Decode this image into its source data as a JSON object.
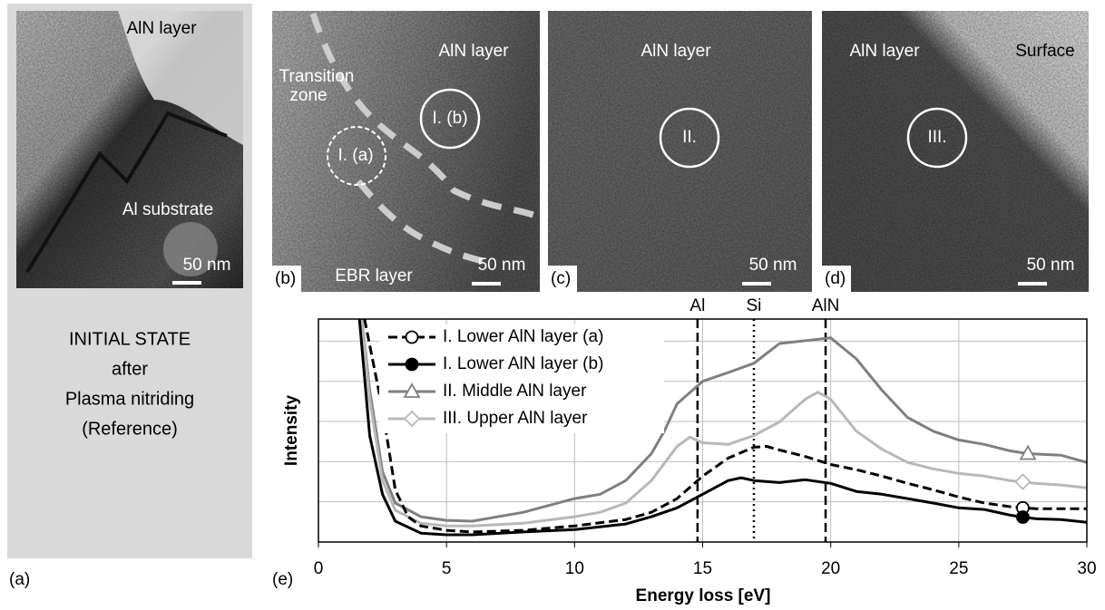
{
  "panels": [
    {
      "label": "(a)",
      "texts": [
        "AlN layer",
        "Al substrate"
      ],
      "scale_bar": "50 nm",
      "caption": [
        "INITIAL STATE",
        "after",
        "Plasma nitriding",
        "(Reference)"
      ]
    },
    {
      "label": "(b)",
      "texts": [
        "AlN layer",
        "Transition",
        "zone",
        "I. (b)",
        "I. (a)",
        "EBR layer"
      ],
      "scale_bar": "50 nm"
    },
    {
      "label": "(c)",
      "texts": [
        "AlN layer",
        "II."
      ],
      "scale_bar": "50 nm"
    },
    {
      "label": "(d)",
      "texts": [
        "AlN layer",
        "Surface",
        "III."
      ],
      "scale_bar": "50 nm"
    }
  ],
  "chart_data": {
    "type": "line",
    "panel_label": "(e)",
    "x_label": "Energy loss [eV]",
    "y_label": "Intensity",
    "xlim": [
      0,
      30
    ],
    "xticks": [
      0,
      5,
      10,
      15,
      20,
      25,
      30
    ],
    "ylim": [
      0,
      5.55
    ],
    "ygrid": [
      1,
      2,
      3,
      4,
      5
    ],
    "grid": true,
    "reference_lines": [
      {
        "label": "Al",
        "x": 14.8,
        "style": "dashed"
      },
      {
        "label": "Si",
        "x": 17,
        "style": "dotted"
      },
      {
        "label": "AlN",
        "x": 19.8,
        "style": "dashed"
      }
    ],
    "series": [
      {
        "name": "I. Lower AlN layer (a)",
        "color": "#000000",
        "dash": true,
        "marker": "circle-open",
        "marker_at": 27.5,
        "x": [
          1.8,
          2.5,
          3,
          3.5,
          4,
          5,
          6,
          8,
          10,
          12,
          13,
          14,
          15,
          16,
          17,
          17.5,
          18,
          19,
          20,
          21,
          22,
          23,
          24,
          25,
          26,
          27,
          27.5,
          28,
          30
        ],
        "values": [
          5.55,
          3.3,
          1.3,
          0.63,
          0.4,
          0.29,
          0.25,
          0.29,
          0.4,
          0.56,
          0.74,
          1.08,
          1.64,
          2.09,
          2.36,
          2.38,
          2.29,
          2.13,
          1.93,
          1.8,
          1.64,
          1.46,
          1.3,
          1.12,
          0.97,
          0.88,
          0.85,
          0.83,
          0.83
        ]
      },
      {
        "name": "I. Lower AlN layer (b)",
        "color": "#000000",
        "dash": false,
        "marker": "circle",
        "marker_at": 27.5,
        "x": [
          1.6,
          2,
          2.5,
          3,
          4,
          5,
          6,
          8,
          10,
          12,
          13,
          14,
          15,
          16,
          16.5,
          17,
          18,
          19,
          20,
          21,
          22,
          23,
          24,
          25,
          26,
          27,
          27.5,
          28,
          29,
          30
        ],
        "values": [
          5.55,
          2.65,
          1.19,
          0.52,
          0.22,
          0.18,
          0.18,
          0.25,
          0.31,
          0.45,
          0.63,
          0.85,
          1.19,
          1.53,
          1.6,
          1.53,
          1.48,
          1.55,
          1.46,
          1.26,
          1.19,
          1.08,
          0.97,
          0.85,
          0.81,
          0.67,
          0.62,
          0.58,
          0.56,
          0.49
        ]
      },
      {
        "name": "II. Middle AlN layer",
        "color": "#7f7f7f",
        "dash": false,
        "marker": "triangle-open",
        "marker_at": 27.7,
        "x": [
          1.7,
          2,
          2.5,
          3,
          4,
          5,
          6,
          8,
          10,
          11,
          12,
          13,
          13.5,
          14,
          15,
          16,
          17,
          18,
          19,
          20,
          21,
          22,
          23,
          24,
          25,
          26,
          27,
          27.7,
          29,
          30
        ],
        "values": [
          5.55,
          3.78,
          1.75,
          0.97,
          0.63,
          0.54,
          0.52,
          0.74,
          1.08,
          1.19,
          1.53,
          2.2,
          2.76,
          3.44,
          4.0,
          4.22,
          4.45,
          4.94,
          5.01,
          5.08,
          4.56,
          3.78,
          3.1,
          2.76,
          2.54,
          2.43,
          2.27,
          2.2,
          2.16,
          1.98
        ]
      },
      {
        "name": "III. Upper AlN layer",
        "color": "#b8b8b8",
        "dash": false,
        "marker": "diamond-open",
        "marker_at": 27.5,
        "x": [
          1.7,
          2,
          2.5,
          3,
          4,
          5,
          6,
          8,
          10,
          11,
          12,
          13,
          14,
          14.5,
          15,
          16,
          17,
          18,
          19,
          19.5,
          20,
          21,
          22,
          23,
          24,
          25,
          26,
          27,
          27.5,
          28,
          29,
          30
        ],
        "values": [
          5.55,
          3.55,
          1.53,
          0.79,
          0.47,
          0.4,
          0.4,
          0.47,
          0.63,
          0.74,
          0.97,
          1.53,
          2.38,
          2.61,
          2.47,
          2.43,
          2.65,
          2.99,
          3.55,
          3.73,
          3.55,
          2.76,
          2.31,
          1.98,
          1.82,
          1.71,
          1.64,
          1.53,
          1.5,
          1.46,
          1.42,
          1.35
        ]
      }
    ]
  }
}
